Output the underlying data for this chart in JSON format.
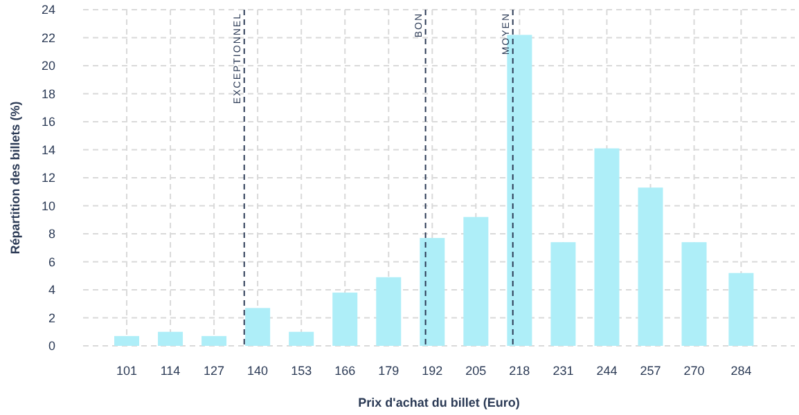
{
  "chart_data": {
    "type": "bar",
    "xlabel": "Prix d'achat du billet (Euro)",
    "ylabel": "Répartition des billets (%)",
    "x": [
      101,
      114,
      127,
      140,
      153,
      166,
      179,
      192,
      205,
      218,
      231,
      244,
      257,
      270,
      284
    ],
    "values": [
      0.7,
      1.0,
      0.7,
      2.7,
      1.0,
      3.8,
      4.9,
      7.7,
      9.2,
      22.2,
      7.4,
      14.1,
      11.3,
      7.4,
      5.2
    ],
    "color": "#aeeef8",
    "xlim": [
      88,
      300
    ],
    "xticks": [
      101,
      114,
      127,
      140,
      153,
      166,
      179,
      192,
      205,
      218,
      231,
      244,
      257,
      270,
      284
    ],
    "ylim": [
      0,
      24
    ],
    "yticks": [
      0,
      2,
      4,
      6,
      8,
      10,
      12,
      14,
      16,
      18,
      20,
      22,
      24
    ],
    "grid": true,
    "ref_lines": [
      {
        "axis": "x",
        "value": 136,
        "label": "EXCEPTIONNEL",
        "color": "#2b3a55",
        "line_style": "dashed"
      },
      {
        "axis": "x",
        "value": 190,
        "label": "BON",
        "color": "#2b3a55",
        "line_style": "dashed"
      },
      {
        "axis": "x",
        "value": 216,
        "label": "MOYEN",
        "color": "#2b3a55",
        "line_style": "dashed"
      }
    ]
  }
}
